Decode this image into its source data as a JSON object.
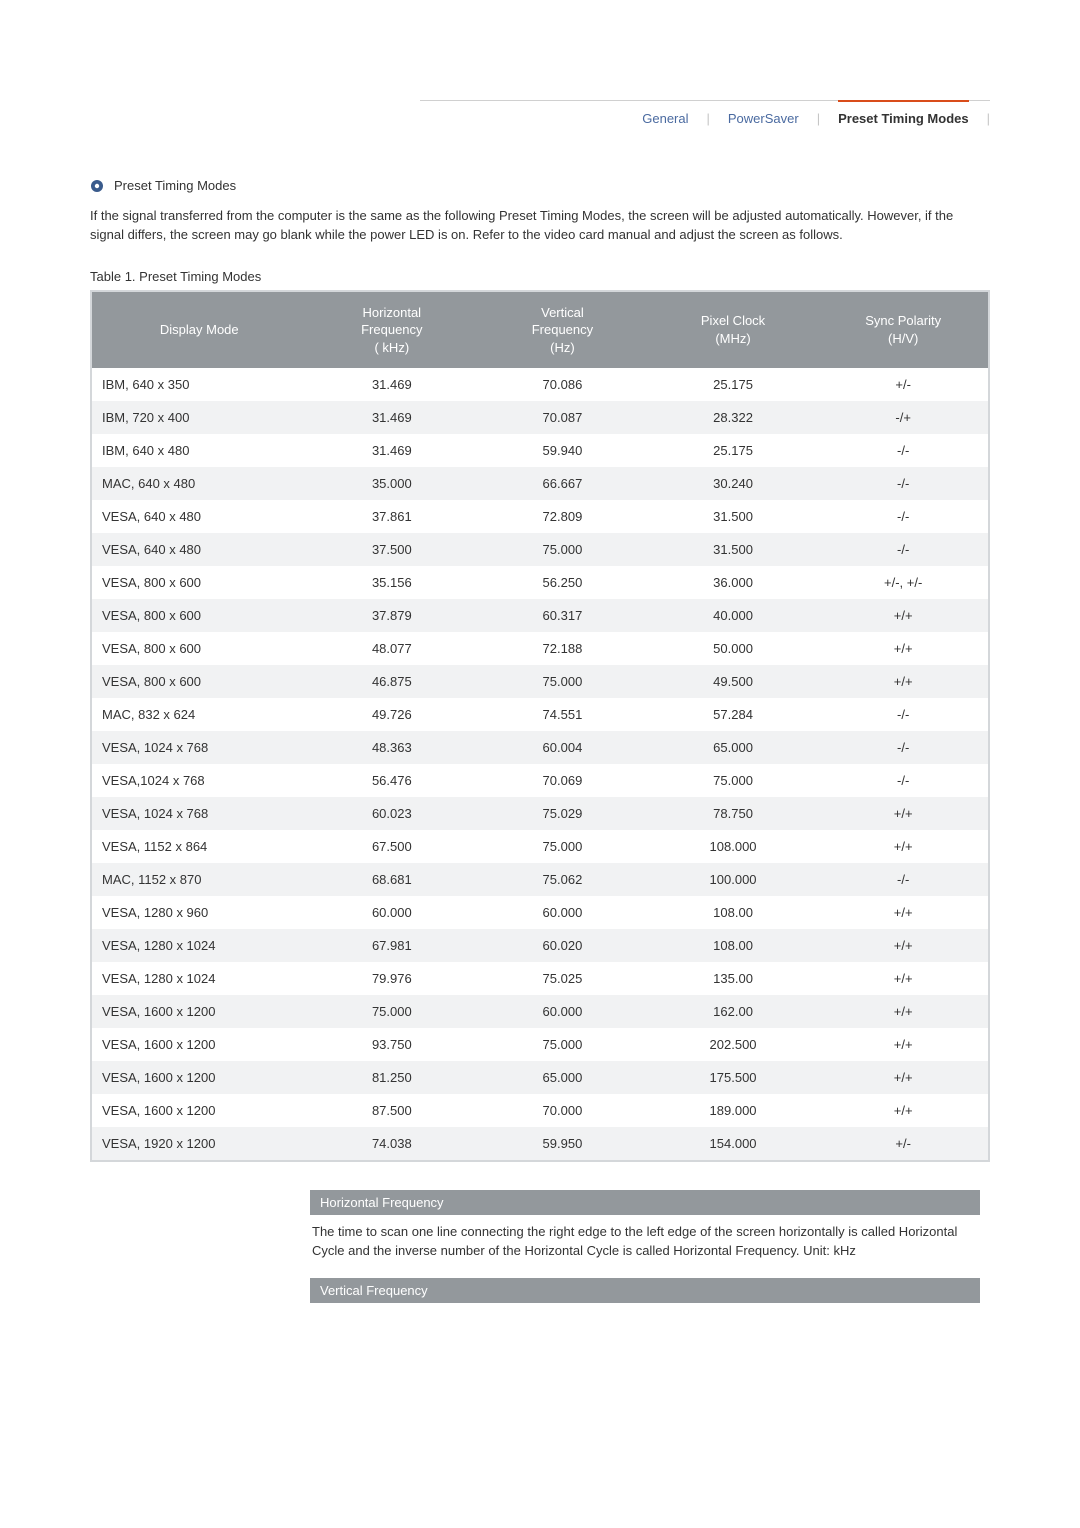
{
  "tabs": {
    "general": "General",
    "powersaver": "PowerSaver",
    "preset": "Preset Timing Modes"
  },
  "section_title": "Preset Timing Modes",
  "intro_text": "If the signal transferred from the computer is the same as the following Preset Timing Modes, the screen will be adjusted automatically. However, if the signal differs, the screen may go blank while the power LED is on. Refer to the video card manual and adjust the screen as follows.",
  "table_caption": "Table 1. Preset Timing Modes",
  "timing_table": {
    "columns": [
      "Display Mode",
      "Horizontal\nFrequency\n( kHz)",
      "Vertical\nFrequency\n(Hz)",
      "Pixel Clock\n(MHz)",
      "Sync Polarity\n(H/V)"
    ],
    "rows": [
      [
        "IBM, 640 x 350",
        "31.469",
        "70.086",
        "25.175",
        "+/-"
      ],
      [
        "IBM, 720 x 400",
        "31.469",
        "70.087",
        "28.322",
        "-/+"
      ],
      [
        "IBM, 640 x 480",
        "31.469",
        "59.940",
        "25.175",
        "-/-"
      ],
      [
        "MAC, 640 x 480",
        "35.000",
        "66.667",
        "30.240",
        "-/-"
      ],
      [
        "VESA, 640 x 480",
        "37.861",
        "72.809",
        "31.500",
        "-/-"
      ],
      [
        "VESA, 640 x 480",
        "37.500",
        "75.000",
        "31.500",
        "-/-"
      ],
      [
        "VESA, 800 x 600",
        "35.156",
        "56.250",
        "36.000",
        "+/-, +/-"
      ],
      [
        "VESA, 800 x 600",
        "37.879",
        "60.317",
        "40.000",
        "+/+"
      ],
      [
        "VESA, 800 x 600",
        "48.077",
        "72.188",
        "50.000",
        "+/+"
      ],
      [
        "VESA, 800 x 600",
        "46.875",
        "75.000",
        "49.500",
        "+/+"
      ],
      [
        "MAC, 832 x 624",
        "49.726",
        "74.551",
        "57.284",
        "-/-"
      ],
      [
        "VESA, 1024 x 768",
        "48.363",
        "60.004",
        "65.000",
        "-/-"
      ],
      [
        "VESA,1024 x 768",
        "56.476",
        "70.069",
        "75.000",
        "-/-"
      ],
      [
        "VESA, 1024 x 768",
        "60.023",
        "75.029",
        "78.750",
        "+/+"
      ],
      [
        "VESA, 1152 x 864",
        "67.500",
        "75.000",
        "108.000",
        "+/+"
      ],
      [
        "MAC, 1152 x 870",
        "68.681",
        "75.062",
        "100.000",
        "-/-"
      ],
      [
        "VESA, 1280 x 960",
        "60.000",
        "60.000",
        "108.00",
        "+/+"
      ],
      [
        "VESA, 1280 x 1024",
        "67.981",
        "60.020",
        "108.00",
        "+/+"
      ],
      [
        "VESA, 1280 x 1024",
        "79.976",
        "75.025",
        "135.00",
        "+/+"
      ],
      [
        "VESA, 1600 x 1200",
        "75.000",
        "60.000",
        "162.00",
        "+/+"
      ],
      [
        "VESA, 1600 x 1200",
        "93.750",
        "75.000",
        "202.500",
        "+/+"
      ],
      [
        "VESA, 1600 x 1200",
        "81.250",
        "65.000",
        "175.500",
        "+/+"
      ],
      [
        "VESA, 1600 x 1200",
        "87.500",
        "70.000",
        "189.000",
        "+/+"
      ],
      [
        "VESA, 1920 x 1200",
        "74.038",
        "59.950",
        "154.000",
        "+/-"
      ]
    ],
    "header_bg": "#93989c",
    "header_fg": "#ffffff",
    "row_odd_bg": "#ffffff",
    "row_even_bg": "#f1f2f3",
    "border_color": "#d4d7da",
    "fontsize": 13
  },
  "definitions": {
    "horizontal_title": "Horizontal Frequency",
    "horizontal_body": "The time to scan one line connecting the right edge to the left edge of the screen horizontally is called Horizontal Cycle and the inverse number of the Horizontal Cycle is called Horizontal Frequency. Unit: kHz",
    "vertical_title": "Vertical Frequency"
  },
  "colors": {
    "tab_link": "#4a6aa0",
    "tab_active_border": "#d94c1a",
    "text": "#333333",
    "bg": "#ffffff"
  }
}
